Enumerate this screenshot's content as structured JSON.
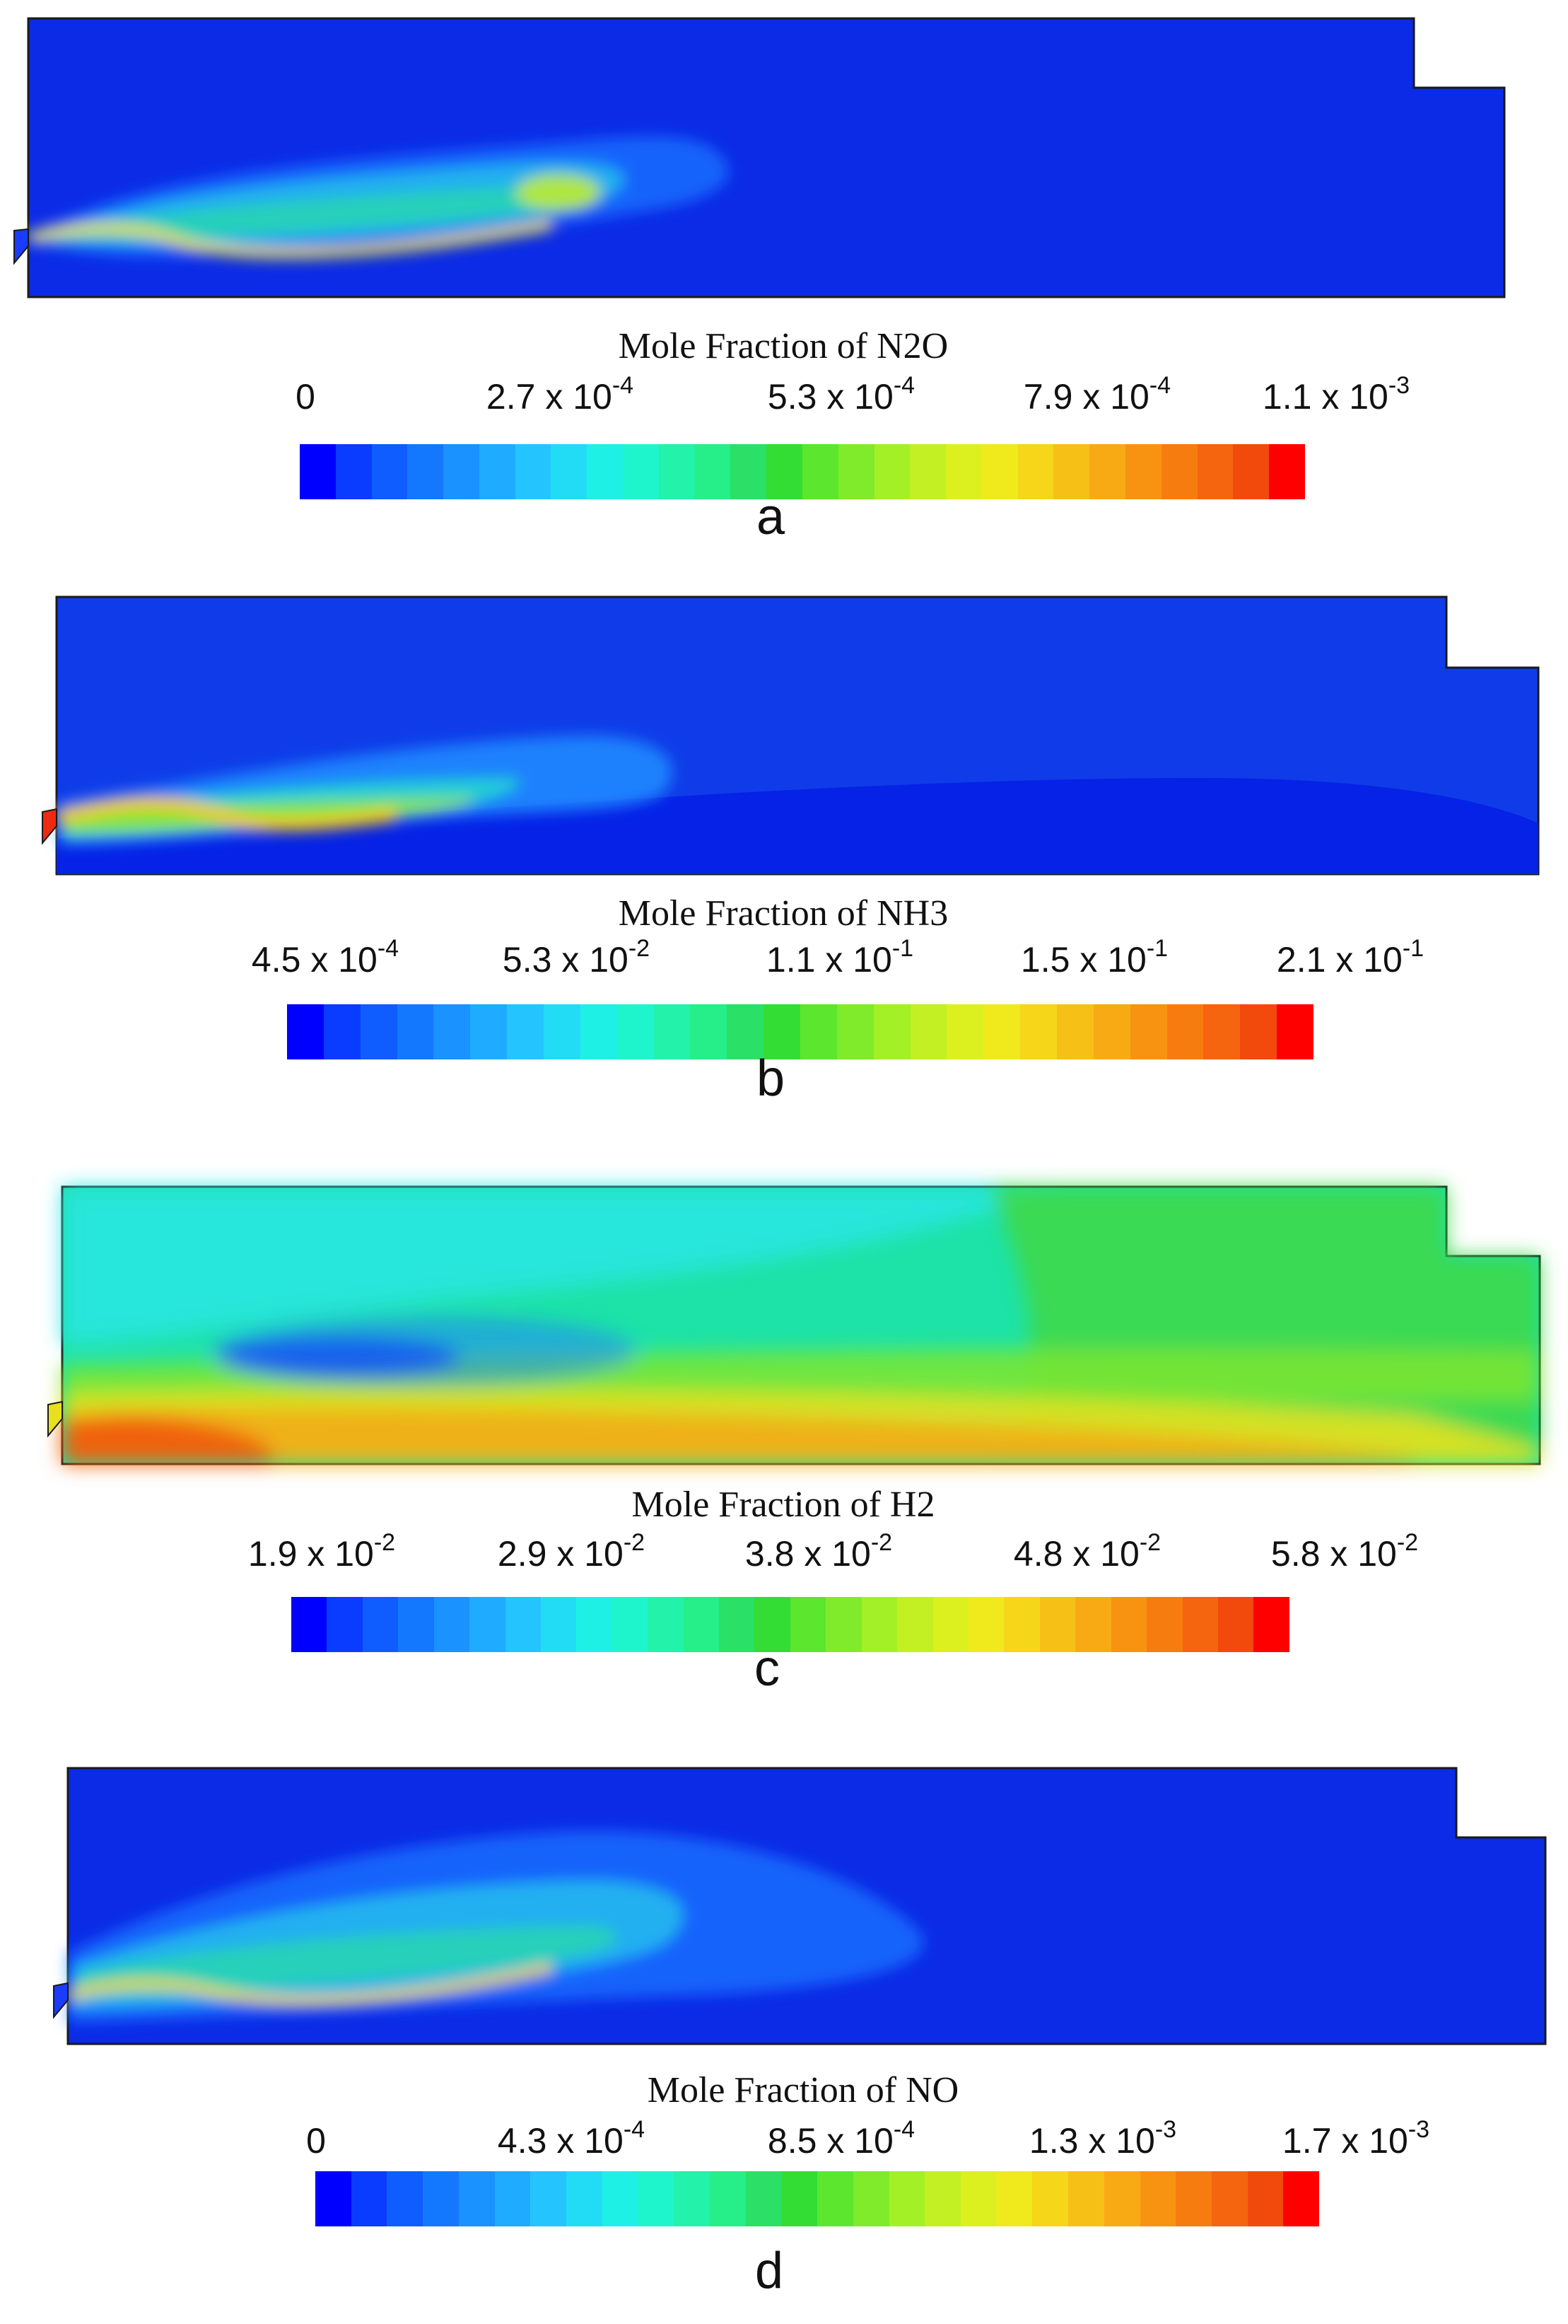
{
  "panels": [
    {
      "letter": "a",
      "legend_title": "Mole Fraction of N2O",
      "ticks": [
        {
          "mantissa": "0",
          "exponent": ""
        },
        {
          "mantissa": "2.7 x 10",
          "exponent": "-4"
        },
        {
          "mantissa": "5.3 x 10",
          "exponent": "-4"
        },
        {
          "mantissa": "7.9 x 10",
          "exponent": "-4"
        },
        {
          "mantissa": "1.1 x 10",
          "exponent": "-3"
        }
      ],
      "field_background": "#0b2be6"
    },
    {
      "letter": "b",
      "legend_title": "Mole Fraction of NH3",
      "ticks": [
        {
          "mantissa": "4.5 x 10",
          "exponent": "-4"
        },
        {
          "mantissa": "5.3 x 10",
          "exponent": "-2"
        },
        {
          "mantissa": "1.1 x 10",
          "exponent": "-1"
        },
        {
          "mantissa": "1.5 x 10",
          "exponent": "-1"
        },
        {
          "mantissa": "2.1 x 10",
          "exponent": "-1"
        }
      ],
      "field_background": "#0f3ce8"
    },
    {
      "letter": "c",
      "legend_title": "Mole Fraction of H2",
      "ticks": [
        {
          "mantissa": "1.9 x 10",
          "exponent": "-2"
        },
        {
          "mantissa": "2.9 x 10",
          "exponent": "-2"
        },
        {
          "mantissa": "3.8 x 10",
          "exponent": "-2"
        },
        {
          "mantissa": "4.8 x 10",
          "exponent": "-2"
        },
        {
          "mantissa": "5.8 x 10",
          "exponent": "-2"
        }
      ],
      "field_background": "#1de3a8"
    },
    {
      "letter": "d",
      "legend_title": "Mole Fraction of NO",
      "ticks": [
        {
          "mantissa": "0",
          "exponent": ""
        },
        {
          "mantissa": "4.3 x 10",
          "exponent": "-4"
        },
        {
          "mantissa": "8.5 x 10",
          "exponent": "-4"
        },
        {
          "mantissa": "1.3 x 10",
          "exponent": "-3"
        },
        {
          "mantissa": "1.7 x 10",
          "exponent": "-3"
        }
      ],
      "field_background": "#0b2be6"
    }
  ],
  "colormap": [
    "#0000ff",
    "#0a3cff",
    "#0f5cff",
    "#1478ff",
    "#1a92ff",
    "#1fabff",
    "#24c4ff",
    "#22dcf5",
    "#1ff0e6",
    "#1ff5cc",
    "#22f2aa",
    "#26ee88",
    "#2be066",
    "#33dd33",
    "#5ce62e",
    "#80eb2a",
    "#a3f026",
    "#c2f022",
    "#ddf01f",
    "#f0ea1c",
    "#f5d619",
    "#f7c017",
    "#f8aa14",
    "#f89312",
    "#f77c10",
    "#f5640e",
    "#f24a0c",
    "#ff0000"
  ]
}
